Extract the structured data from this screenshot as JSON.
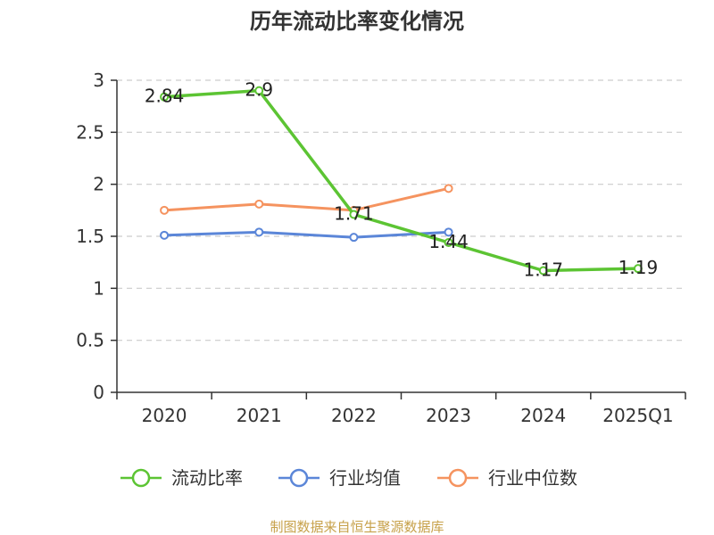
{
  "source_text": "制图数据来自恒生聚源数据库",
  "chart_data": {
    "type": "line",
    "title": "历年流动比率变化情况",
    "xlabel": "",
    "ylabel": "",
    "categories": [
      "2020",
      "2021",
      "2022",
      "2023",
      "2024",
      "2025Q1"
    ],
    "ylim": [
      0,
      3
    ],
    "yticks": [
      "0",
      "0.5",
      "1",
      "1.5",
      "2",
      "2.5",
      "3"
    ],
    "grid": true,
    "legend_position": "bottom",
    "series": [
      {
        "name": "流动比率",
        "color": "#5cc433",
        "values": [
          2.84,
          2.9,
          1.71,
          1.44,
          1.17,
          1.19
        ],
        "labels": [
          "2.84",
          "2.9",
          "1.71",
          "1.44",
          "1.17",
          "1.19"
        ]
      },
      {
        "name": "行业均值",
        "color": "#5b86d8",
        "values": [
          1.51,
          1.54,
          1.49,
          1.54,
          null,
          null
        ]
      },
      {
        "name": "行业中位数",
        "color": "#f5935f",
        "values": [
          1.75,
          1.81,
          1.75,
          1.96,
          null,
          null
        ]
      }
    ]
  }
}
